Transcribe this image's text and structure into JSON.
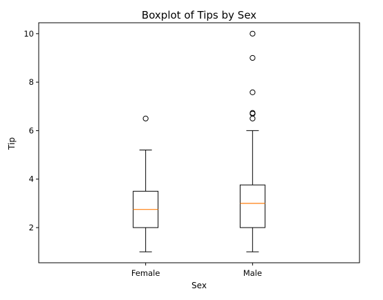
{
  "chart_data": {
    "type": "boxplot",
    "title": "Boxplot of Tips by Sex",
    "xlabel": "Sex",
    "ylabel": "Tip",
    "categories": [
      "Female",
      "Male"
    ],
    "ylim": [
      0.55,
      10.45
    ],
    "yticks": [
      2,
      4,
      6,
      8,
      10
    ],
    "yticklabels": [
      "2",
      "4",
      "6",
      "8",
      "10"
    ],
    "boxes": [
      {
        "category": "Female",
        "whisker_low": 1.0,
        "q1": 2.0,
        "median": 2.75,
        "q3": 3.5,
        "whisker_high": 5.2,
        "outliers": [
          6.5
        ]
      },
      {
        "category": "Male",
        "whisker_low": 1.0,
        "q1": 2.0,
        "median": 3.0,
        "q3": 3.76,
        "whisker_high": 6.0,
        "outliers": [
          6.5,
          6.7,
          6.73,
          7.58,
          9.0,
          10.0
        ]
      }
    ],
    "grid": false,
    "colors": {
      "box": "#000000",
      "median": "#ff7f0e",
      "outlier": "#000000"
    }
  }
}
